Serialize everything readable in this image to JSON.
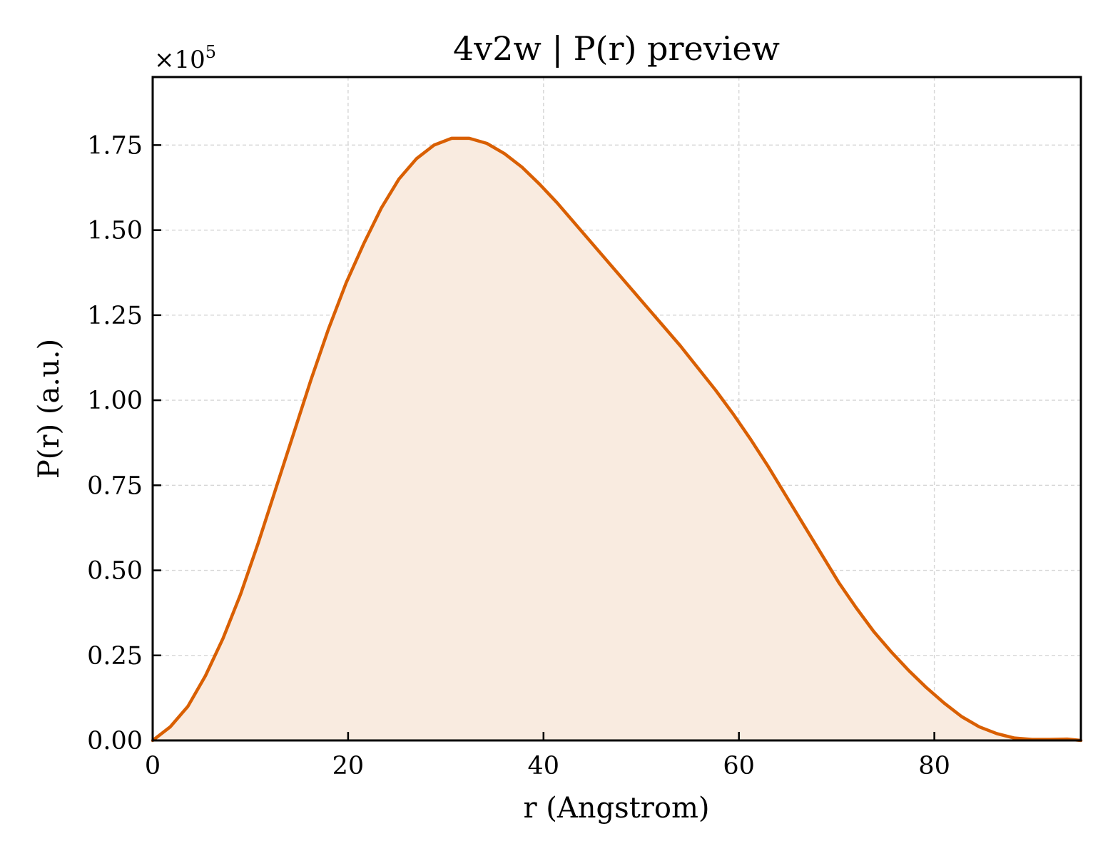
{
  "chart_data": {
    "type": "area",
    "title": "4v2w | P(r) preview",
    "xlabel": "r (Angstrom)",
    "ylabel": "P(r) (a.u.)",
    "y_multiplier_base": "×10",
    "y_multiplier_exp": "5",
    "xlim": [
      0,
      95
    ],
    "ylim": [
      0,
      1.95
    ],
    "x_ticks": [
      {
        "value": 0,
        "label": "0"
      },
      {
        "value": 20,
        "label": "20"
      },
      {
        "value": 40,
        "label": "40"
      },
      {
        "value": 60,
        "label": "60"
      },
      {
        "value": 80,
        "label": "80"
      }
    ],
    "y_ticks": [
      {
        "value": 0,
        "label": "0.00"
      },
      {
        "value": 0.25,
        "label": "0.25"
      },
      {
        "value": 0.5,
        "label": "0.50"
      },
      {
        "value": 0.75,
        "label": "0.75"
      },
      {
        "value": 1.0,
        "label": "1.00"
      },
      {
        "value": 1.25,
        "label": "1.25"
      },
      {
        "value": 1.5,
        "label": "1.50"
      },
      {
        "value": 1.75,
        "label": "1.75"
      }
    ],
    "grid": true,
    "colors": {
      "line": "#d95f02",
      "fill": "#f9ebe0",
      "grid": "#d6d6d6"
    },
    "series": [
      {
        "x": [
          0,
          1.8,
          3.6,
          5.4,
          7.2,
          9,
          10.8,
          12.6,
          14.4,
          16.2,
          18,
          19.8,
          21.6,
          23.4,
          25.2,
          27,
          28.8,
          30.6,
          32.4,
          34.2,
          36,
          37.8,
          39.6,
          41.4,
          43.2,
          45,
          46.8,
          48.6,
          50.4,
          52.2,
          54,
          55.8,
          57.6,
          59.4,
          61.2,
          63,
          64.8,
          66.6,
          68.4,
          70.2,
          72,
          73.8,
          75.6,
          77.4,
          79.2,
          81,
          82.8,
          84.6,
          86.4,
          88.2,
          90,
          91.8,
          93.6,
          95
        ],
        "y": [
          0,
          0.04,
          0.1,
          0.19,
          0.3,
          0.43,
          0.58,
          0.74,
          0.9,
          1.06,
          1.21,
          1.345,
          1.46,
          1.565,
          1.65,
          1.71,
          1.75,
          1.77,
          1.77,
          1.755,
          1.725,
          1.685,
          1.635,
          1.58,
          1.52,
          1.46,
          1.4,
          1.34,
          1.28,
          1.22,
          1.16,
          1.095,
          1.03,
          0.96,
          0.885,
          0.805,
          0.72,
          0.635,
          0.55,
          0.465,
          0.39,
          0.32,
          0.26,
          0.205,
          0.155,
          0.11,
          0.07,
          0.04,
          0.02,
          0.007,
          0.003,
          0.003,
          0.004,
          0
        ]
      }
    ]
  }
}
